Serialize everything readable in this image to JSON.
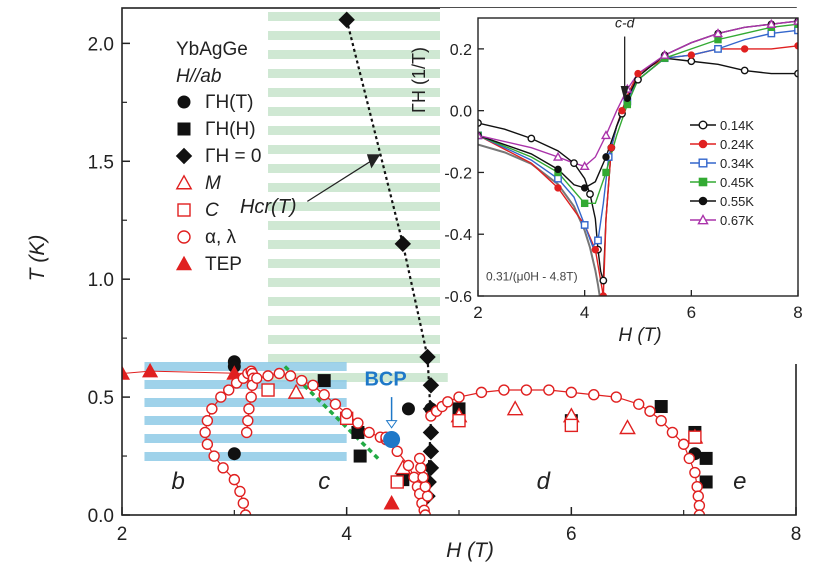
{
  "chart_data": [
    {
      "id": "main",
      "type": "scatter",
      "title": "",
      "xlabel": "H (T)",
      "ylabel": "T (K)",
      "xlim": [
        2,
        8
      ],
      "ylim": [
        0,
        2.15
      ],
      "xticks": [
        "2",
        "4",
        "6",
        "8"
      ],
      "xtick_values": [
        2,
        4,
        6,
        8
      ],
      "yticks": [
        "0.0",
        "0.5",
        "1.0",
        "1.5",
        "2.0"
      ],
      "ytick_values": [
        0.0,
        0.5,
        1.0,
        1.5,
        2.0
      ],
      "material": "YbAgGe",
      "field_direction": "H//ab",
      "legend": [
        {
          "label": "ΓH(T)",
          "marker": "circle",
          "filled": true,
          "color": "#111111"
        },
        {
          "label": "ΓH(H)",
          "marker": "square",
          "filled": true,
          "color": "#111111"
        },
        {
          "label": "ΓH = 0",
          "marker": "diamond",
          "filled": true,
          "color": "#111111"
        },
        {
          "label": "M",
          "marker": "triangle",
          "filled": false,
          "color": "#e02020"
        },
        {
          "label": "C",
          "marker": "square",
          "filled": false,
          "color": "#e02020"
        },
        {
          "label": "α, λ",
          "marker": "circle",
          "filled": false,
          "color": "#e02020"
        },
        {
          "label": "TEP",
          "marker": "triangle",
          "filled": true,
          "color": "#e02020"
        }
      ],
      "series": [
        {
          "name": "ΓH(T)",
          "marker": "circle",
          "filled": true,
          "color": "#111111",
          "x": [
            3.0,
            3.0,
            3.0,
            4.55,
            4.75,
            7.1
          ],
          "y": [
            0.65,
            0.63,
            0.26,
            0.45,
            0.45,
            0.26
          ]
        },
        {
          "name": "ΓH(H)",
          "marker": "square",
          "filled": true,
          "color": "#111111",
          "x": [
            3.8,
            4.1,
            4.12,
            4.5,
            5.0,
            5.0,
            6.0,
            6.8,
            7.1,
            7.2,
            7.2
          ],
          "y": [
            0.57,
            0.35,
            0.25,
            0.15,
            0.45,
            0.43,
            0.4,
            0.46,
            0.35,
            0.24,
            0.14
          ]
        },
        {
          "name": "ΓH = 0",
          "marker": "diamond",
          "filled": true,
          "color": "#111111",
          "x": [
            4.0,
            4.5,
            4.72,
            4.75,
            4.75,
            4.75,
            4.75,
            4.75,
            4.73,
            4.72
          ],
          "y": [
            2.1,
            1.15,
            0.67,
            0.55,
            0.45,
            0.35,
            0.27,
            0.2,
            0.14,
            0.08
          ]
        },
        {
          "name": "M",
          "marker": "triangle",
          "filled": false,
          "color": "#e02020",
          "x": [
            3.55,
            4.5,
            5.0,
            5.5,
            6.0,
            6.5,
            7.1
          ],
          "y": [
            0.52,
            0.2,
            0.42,
            0.45,
            0.42,
            0.37,
            0.33
          ]
        },
        {
          "name": "C",
          "marker": "square",
          "filled": false,
          "color": "#e02020",
          "x": [
            3.3,
            4.0,
            4.45,
            5.0,
            6.0,
            7.1
          ],
          "y": [
            0.53,
            0.41,
            0.14,
            0.4,
            0.38,
            0.33
          ]
        },
        {
          "name": "TEP",
          "marker": "triangle",
          "filled": true,
          "color": "#e02020",
          "x": [
            2.0,
            2.25,
            3.0,
            4.4
          ],
          "y": [
            0.6,
            0.61,
            0.6,
            0.05
          ]
        },
        {
          "name": "α, λ (left boundary)",
          "marker": "circle",
          "filled": false,
          "color": "#e02020",
          "line": true,
          "x": [
            3.1,
            3.08,
            3.05,
            3.0,
            2.9,
            2.82,
            2.76,
            2.74,
            2.76,
            2.8,
            2.88,
            2.95,
            3.02,
            3.08,
            3.12,
            3.15,
            3.16,
            3.17,
            3.16,
            3.15,
            3.13,
            3.12,
            3.11
          ],
          "y": [
            0.0,
            0.05,
            0.1,
            0.15,
            0.2,
            0.25,
            0.3,
            0.35,
            0.4,
            0.45,
            0.5,
            0.53,
            0.56,
            0.58,
            0.6,
            0.61,
            0.6,
            0.58,
            0.55,
            0.5,
            0.45,
            0.4,
            0.35
          ]
        },
        {
          "name": "α, λ (c-phase top)",
          "marker": "circle",
          "filled": false,
          "color": "#e02020",
          "line": true,
          "x": [
            3.2,
            3.3,
            3.4,
            3.5,
            3.6,
            3.7,
            3.8,
            3.9,
            4.0,
            4.1,
            4.2,
            4.3,
            4.35
          ],
          "y": [
            0.58,
            0.59,
            0.6,
            0.59,
            0.57,
            0.55,
            0.51,
            0.47,
            0.43,
            0.39,
            0.35,
            0.33,
            0.32
          ]
        },
        {
          "name": "α, λ (c-phase right)",
          "marker": "circle",
          "filled": false,
          "color": "#e02020",
          "line": true,
          "x": [
            4.35,
            4.45,
            4.55,
            4.6,
            4.63,
            4.65,
            4.67,
            4.69,
            4.7
          ],
          "y": [
            0.33,
            0.27,
            0.21,
            0.16,
            0.12,
            0.09,
            0.05,
            0.02,
            0.0
          ]
        },
        {
          "name": "α, λ (d dome)",
          "marker": "circle",
          "filled": false,
          "color": "#e02020",
          "line": true,
          "x": [
            4.75,
            4.8,
            4.85,
            4.9,
            5.0,
            5.2,
            5.4,
            5.6,
            5.8,
            6.0,
            6.2,
            6.4,
            6.6,
            6.7,
            6.8,
            6.9,
            7.0,
            7.05,
            7.1,
            7.12,
            7.13,
            7.14,
            7.14
          ],
          "y": [
            0.42,
            0.44,
            0.46,
            0.48,
            0.5,
            0.52,
            0.53,
            0.53,
            0.53,
            0.52,
            0.51,
            0.5,
            0.47,
            0.44,
            0.4,
            0.35,
            0.3,
            0.24,
            0.18,
            0.12,
            0.08,
            0.04,
            0.0
          ]
        },
        {
          "name": "α, λ (lower left)",
          "marker": "circle",
          "filled": false,
          "color": "#e02020",
          "line": false,
          "x": [
            4.72,
            4.7,
            4.68,
            4.66,
            4.65
          ],
          "y": [
            0.08,
            0.12,
            0.16,
            0.2,
            0.24
          ]
        }
      ],
      "hcr_line": {
        "label": "Hcr(T)",
        "x": [
          4.0,
          4.5,
          4.72,
          4.75,
          4.72
        ],
        "y": [
          2.1,
          1.15,
          0.67,
          0.4,
          0.08
        ]
      },
      "green_line": {
        "x": [
          3.45,
          4.3
        ],
        "y": [
          0.63,
          0.23
        ]
      },
      "bcp": {
        "label": "BCP",
        "x": 4.4,
        "y": 0.32,
        "color": "#1e78c8"
      },
      "phase_labels": [
        {
          "text": "b",
          "x": 2.5,
          "y": 0.11
        },
        {
          "text": "c",
          "x": 3.8,
          "y": 0.11
        },
        {
          "text": "d",
          "x": 5.75,
          "y": 0.11
        },
        {
          "text": "e",
          "x": 7.5,
          "y": 0.11
        }
      ],
      "hcr_label": "Hcr(T)"
    },
    {
      "id": "inset",
      "type": "line",
      "xlabel": "H (T)",
      "ylabel": "ΓH (1/T)",
      "xlim": [
        2,
        8
      ],
      "ylim": [
        -0.6,
        0.3
      ],
      "xticks": [
        "2",
        "4",
        "6",
        "8"
      ],
      "xtick_values": [
        2,
        4,
        6,
        8
      ],
      "yticks": [
        "-0.6",
        "-0.4",
        "-0.2",
        "0.0",
        "0.2"
      ],
      "ytick_values": [
        -0.6,
        -0.4,
        -0.2,
        0.0,
        0.2
      ],
      "annotation": "c-d",
      "fit_label": "0.31/(μ0H - 4.8T)",
      "series": [
        {
          "name": "0.14K",
          "color": "#111111",
          "marker": "circle",
          "filled": false,
          "x": [
            2.0,
            2.5,
            3.0,
            3.5,
            3.8,
            4.0,
            4.1,
            4.2,
            4.25,
            4.3,
            4.35,
            4.4,
            4.5,
            4.6,
            4.7,
            4.8,
            5.0,
            5.5,
            6.0,
            6.5,
            7.0,
            7.5,
            8.0
          ],
          "y": [
            -0.04,
            -0.06,
            -0.09,
            -0.13,
            -0.17,
            -0.22,
            -0.27,
            -0.35,
            -0.45,
            -0.52,
            -0.55,
            -0.35,
            -0.12,
            -0.05,
            -0.01,
            0.03,
            0.1,
            0.17,
            0.16,
            0.15,
            0.13,
            0.12,
            0.12
          ]
        },
        {
          "name": "0.24K",
          "color": "#e02020",
          "marker": "circle",
          "filled": true,
          "x": [
            2.0,
            3.0,
            3.5,
            4.0,
            4.2,
            4.3,
            4.35,
            4.4,
            4.5,
            4.6,
            4.7,
            4.8,
            5.0,
            5.5,
            6.0,
            6.5,
            7.0,
            7.5,
            8.0
          ],
          "y": [
            -0.08,
            -0.17,
            -0.25,
            -0.37,
            -0.45,
            -0.55,
            -0.6,
            -0.35,
            -0.12,
            -0.05,
            0.0,
            0.05,
            0.12,
            0.17,
            0.18,
            0.2,
            0.2,
            0.2,
            0.21
          ]
        },
        {
          "name": "0.34K",
          "color": "#3366cc",
          "marker": "square",
          "filled": false,
          "x": [
            2.0,
            3.0,
            3.5,
            3.8,
            4.0,
            4.15,
            4.25,
            4.35,
            4.45,
            4.6,
            4.8,
            5.0,
            5.5,
            6.0,
            6.5,
            7.0,
            7.5,
            8.0
          ],
          "y": [
            -0.08,
            -0.16,
            -0.22,
            -0.28,
            -0.37,
            -0.44,
            -0.42,
            -0.3,
            -0.15,
            -0.05,
            0.03,
            0.1,
            0.17,
            0.18,
            0.2,
            0.23,
            0.25,
            0.26
          ]
        },
        {
          "name": "0.45K",
          "color": "#33aa33",
          "marker": "square",
          "filled": true,
          "x": [
            2.0,
            3.0,
            3.5,
            3.8,
            4.0,
            4.2,
            4.4,
            4.6,
            4.8,
            5.0,
            5.5,
            6.0,
            6.5,
            7.0,
            7.5,
            8.0
          ],
          "y": [
            -0.08,
            -0.15,
            -0.2,
            -0.26,
            -0.3,
            -0.3,
            -0.2,
            -0.08,
            0.02,
            0.1,
            0.17,
            0.2,
            0.23,
            0.25,
            0.27,
            0.28
          ]
        },
        {
          "name": "0.55K",
          "color": "#111111",
          "marker": "circle",
          "filled": true,
          "x": [
            2.0,
            3.0,
            3.5,
            3.8,
            4.0,
            4.2,
            4.4,
            4.6,
            4.8,
            5.0,
            5.5,
            6.0,
            6.5,
            7.0,
            7.5,
            8.0
          ],
          "y": [
            -0.08,
            -0.14,
            -0.19,
            -0.24,
            -0.25,
            -0.23,
            -0.15,
            -0.05,
            0.04,
            0.11,
            0.18,
            0.22,
            0.25,
            0.27,
            0.28,
            0.29
          ]
        },
        {
          "name": "0.67K",
          "color": "#aa33aa",
          "marker": "triangle",
          "filled": false,
          "x": [
            2.0,
            3.0,
            3.5,
            3.8,
            4.0,
            4.2,
            4.4,
            4.6,
            4.8,
            5.0,
            5.5,
            6.0,
            6.5,
            7.0,
            7.5,
            8.0
          ],
          "y": [
            -0.08,
            -0.12,
            -0.15,
            -0.17,
            -0.18,
            -0.15,
            -0.08,
            0.0,
            0.07,
            0.12,
            0.18,
            0.22,
            0.25,
            0.27,
            0.28,
            0.29
          ]
        }
      ],
      "fit": {
        "color": "#777777",
        "x": [
          2.0,
          2.5,
          3.0,
          3.5,
          3.8,
          4.0,
          4.1,
          4.2,
          4.25,
          4.3
        ],
        "y": [
          -0.11,
          -0.135,
          -0.172,
          -0.238,
          -0.31,
          -0.388,
          -0.443,
          -0.517,
          -0.564,
          -0.62
        ]
      }
    }
  ]
}
